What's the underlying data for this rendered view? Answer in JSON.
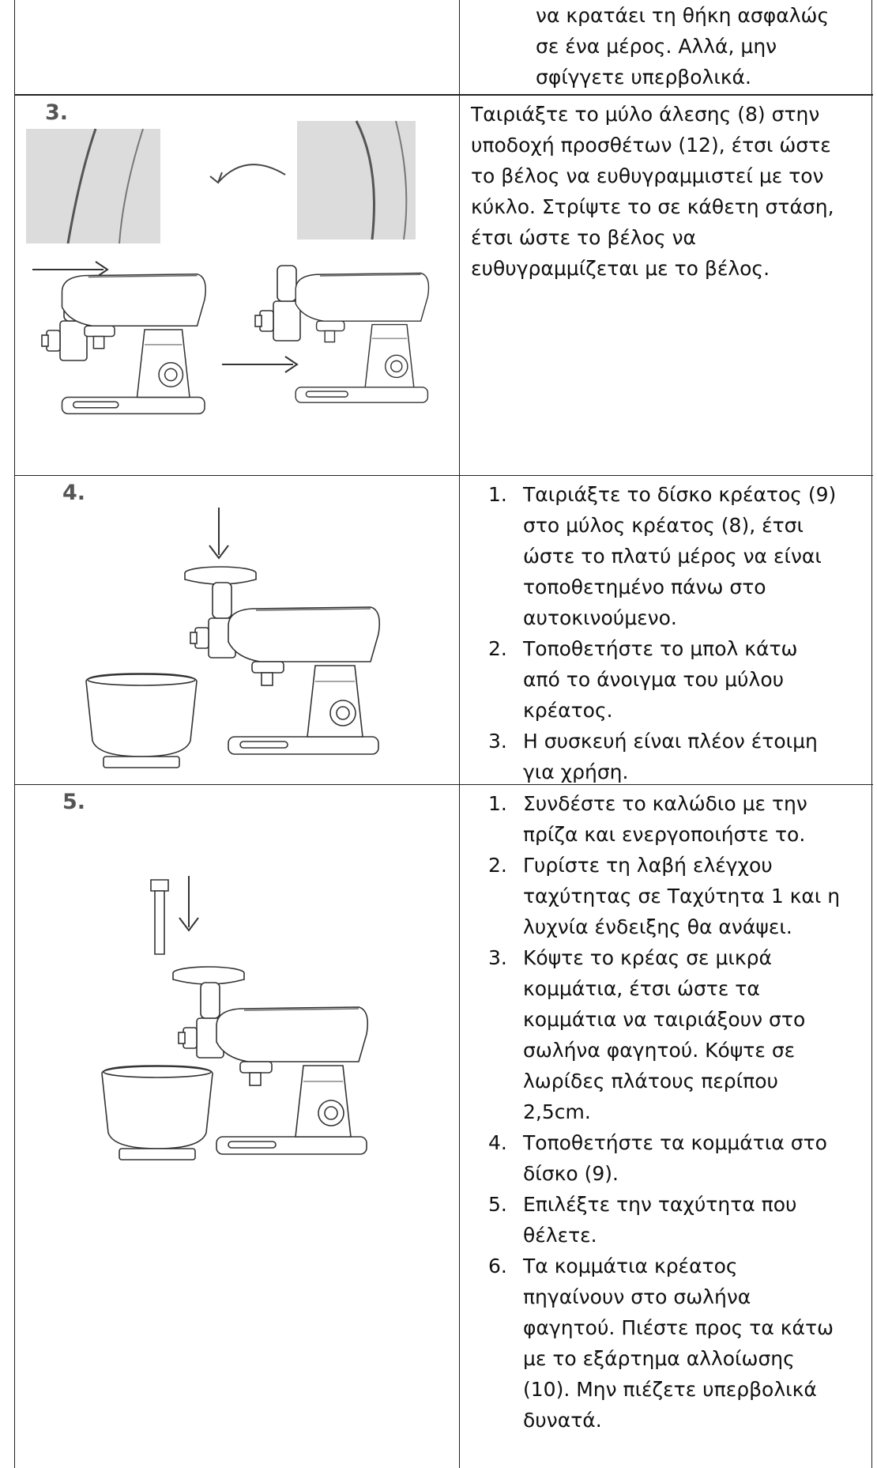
{
  "table": {
    "rows": [
      {
        "text": [
          "να κρατάει τη θήκη ασφαλώς",
          "σε ένα μέρος. Αλλά, μην",
          "σφίγγετε υπερβολικά."
        ]
      },
      {
        "step": "3.",
        "text": [
          "Ταιριάξτε το μύλο άλεσης (8) στην",
          "υποδοχή προσθέτων (12), έτσι ώστε",
          "το βέλος να ευθυγραμμιστεί με τον",
          "κύκλο. Στρίψτε το σε κάθετη στάση,",
          "έτσι ώστε το βέλος να",
          "ευθυγραμμίζεται με το βέλος."
        ]
      },
      {
        "step": "4.",
        "items": [
          {
            "number": "1.",
            "lines": [
              "Ταιριάξτε το δίσκο κρέατος (9)",
              "στο μύλος κρέατος (8), έτσι",
              "ώστε το πλατύ μέρος να είναι",
              "τοποθετημένο πάνω στο",
              "αυτοκινούμενο."
            ]
          },
          {
            "number": "2.",
            "lines": [
              "Τοποθετήστε το μπολ κάτω",
              "από το άνοιγμα του μύλου",
              "κρέατος."
            ]
          },
          {
            "number": "3.",
            "lines": [
              "Η συσκευή είναι πλέον έτοιμη",
              "για χρήση."
            ]
          }
        ]
      },
      {
        "step": "5.",
        "items": [
          {
            "number": "1.",
            "lines": [
              "Συνδέστε το καλώδιο με την",
              "πρίζα και ενεργοποιήστε το."
            ]
          },
          {
            "number": "2.",
            "lines": [
              "Γυρίστε τη λαβή ελέγχου",
              "ταχύτητας σε Ταχύτητα 1 και η",
              "λυχνία ένδειξης θα ανάψει."
            ]
          },
          {
            "number": "3.",
            "lines": [
              "Κόψτε το κρέας σε μικρά",
              "κομμάτια, έτσι ώστε τα",
              "κομμάτια να ταιριάξουν στο",
              "σωλήνα φαγητού. Κόψτε σε",
              "λωρίδες πλάτους περίπου",
              "2,5cm."
            ]
          },
          {
            "number": "4.",
            "lines": [
              "Τοποθετήστε τα κομμάτια στο",
              "δίσκο (9)."
            ]
          },
          {
            "number": "5.",
            "lines": [
              "Επιλέξτε την ταχύτητα που",
              "θέλετε."
            ]
          },
          {
            "number": "6.",
            "lines": [
              "Τα κομμάτια κρέατος",
              "πηγαίνουν στο σωλήνα",
              "φαγητού. Πιέστε προς τα κάτω",
              "με το εξάρτημα αλλοίωσης",
              "(10). Μην πιέζετε υπερβολικά",
              "δυνατά."
            ]
          }
        ]
      }
    ]
  }
}
